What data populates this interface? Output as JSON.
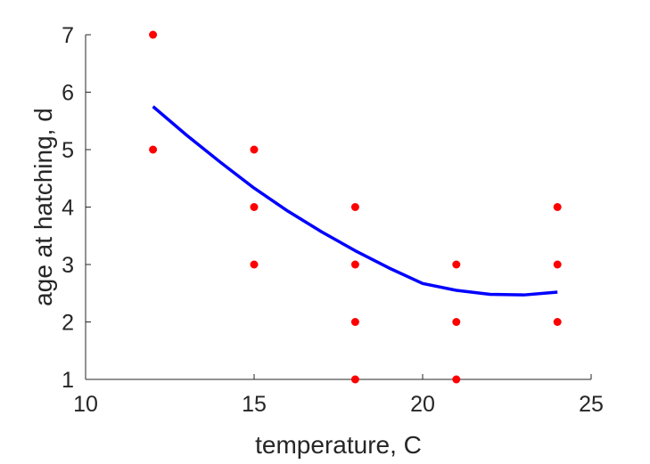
{
  "chart_data": {
    "type": "scatter",
    "title": "",
    "xlabel": "temperature, C",
    "ylabel": "age at hatching, d",
    "xlim": [
      10,
      25
    ],
    "ylim": [
      1,
      7
    ],
    "xticks": [
      10,
      15,
      20,
      25
    ],
    "yticks": [
      1,
      2,
      3,
      4,
      5,
      6,
      7
    ],
    "grid": false,
    "legend": "none",
    "colors": {
      "points": "#ff0000",
      "curve": "#0000ff",
      "axis": "#262626"
    },
    "series": [
      {
        "kind": "points",
        "x": [
          12,
          12,
          15,
          15,
          15,
          18,
          18,
          18,
          18,
          21,
          21,
          21,
          24,
          24,
          24
        ],
        "y": [
          7,
          5,
          5,
          4,
          3,
          4,
          3,
          2,
          1,
          3,
          2,
          1,
          4,
          3,
          2
        ]
      },
      {
        "kind": "line",
        "x": [
          12,
          13,
          14,
          15,
          16,
          17,
          18,
          19,
          20,
          21,
          22,
          23,
          24
        ],
        "y": [
          5.75,
          5.25,
          4.78,
          4.33,
          3.93,
          3.57,
          3.24,
          2.94,
          2.67,
          2.55,
          2.48,
          2.47,
          2.52
        ]
      }
    ]
  }
}
